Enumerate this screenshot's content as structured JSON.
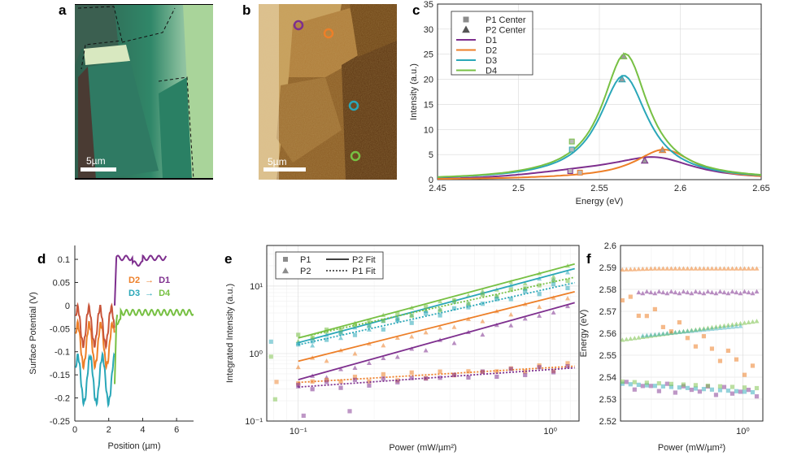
{
  "panels": {
    "a": "a",
    "b": "b",
    "c": "c",
    "d": "d",
    "e": "e",
    "f": "f"
  },
  "scalebar_a": "5µm",
  "scalebar_b": "5µm",
  "colors": {
    "D1": "#7e2f8e",
    "D2": "#ed7f28",
    "D3": "#2aa7b8",
    "D4": "#77c043",
    "red": "#c8553a",
    "marker_gray": "#8c8c8c"
  },
  "chart_data": [
    {
      "id": "c",
      "type": "line",
      "xlabel": "Energy (eV)",
      "ylabel": "Intensity (a.u.)",
      "xlim": [
        2.45,
        2.65
      ],
      "ylim": [
        0,
        35
      ],
      "xticks": [
        "2.45",
        "2.5",
        "2.55",
        "2.6",
        "2.65"
      ],
      "yticks": [
        "0",
        "5",
        "10",
        "15",
        "20",
        "25",
        "30",
        "35"
      ],
      "legend": [
        "P1 Center",
        "P2 Center",
        "D1",
        "D2",
        "D3",
        "D4"
      ],
      "series": [
        {
          "name": "D1",
          "center": 2.585,
          "width": 0.03,
          "amp": 3.8,
          "base": 1.3,
          "p1": [
            2.532,
            1.7
          ],
          "p2": [
            2.578,
            3.8
          ]
        },
        {
          "name": "D2",
          "center": 2.59,
          "width": 0.022,
          "amp": 5.9,
          "base": 0.2,
          "p1": [
            2.538,
            1.4
          ],
          "p2": [
            2.589,
            5.9
          ]
        },
        {
          "name": "D3",
          "center": 2.565,
          "width": 0.018,
          "amp": 20.5,
          "base": 0.3,
          "p1": [
            2.533,
            6.0
          ],
          "p2": [
            2.564,
            20.0
          ]
        },
        {
          "name": "D4",
          "center": 2.566,
          "width": 0.017,
          "amp": 24.6,
          "base": 0.6,
          "p1": [
            2.533,
            7.6
          ],
          "p2": [
            2.565,
            24.6
          ]
        }
      ]
    },
    {
      "id": "d",
      "type": "line",
      "xlabel": "Position  (µm)",
      "ylabel": "Surface Potential (V)",
      "xlim": [
        0,
        7
      ],
      "ylim": [
        -0.25,
        0.13
      ],
      "xticks": [
        "0",
        "2",
        "4",
        "6"
      ],
      "yticks": [
        "0.1",
        "0.05",
        "0",
        "-0.05",
        "-0.1",
        "-0.15",
        "-0.2",
        "-0.25"
      ],
      "legend": [
        {
          "from": "D2",
          "to": "D1"
        },
        {
          "from": "D3",
          "to": "D4"
        }
      ],
      "arrow": "→"
    },
    {
      "id": "e",
      "type": "scatter",
      "xlabel": "Power  (mW/µm²)",
      "ylabel": "Integrated Intensity (a.u.)",
      "xlim_log": [
        0.075,
        1.3
      ],
      "ylim_log": [
        0.1,
        40
      ],
      "xticks": [
        "10⁻¹",
        "10⁰"
      ],
      "yticks": [
        "10⁻¹",
        "10⁰",
        "10¹"
      ],
      "legend": [
        "P1",
        "P2",
        "P2 Fit",
        "P1 Fit"
      ],
      "fits": [
        {
          "series": "D4",
          "kind": "P2",
          "a": 17.0,
          "b": 1.0
        },
        {
          "series": "D3",
          "kind": "P2",
          "a": 14.5,
          "b": 1.0
        },
        {
          "series": "D4",
          "kind": "P1",
          "a": 11.3,
          "b": 0.82
        },
        {
          "series": "D3",
          "kind": "P1",
          "a": 9.3,
          "b": 0.84
        },
        {
          "series": "D2",
          "kind": "P2",
          "a": 6.7,
          "b": 0.94
        },
        {
          "series": "D1",
          "kind": "P2",
          "a": 4.5,
          "b": 1.04
        },
        {
          "series": "D2",
          "kind": "P1",
          "a": 0.62,
          "b": 0.22
        },
        {
          "series": "D1",
          "kind": "P1",
          "a": 0.58,
          "b": 0.26
        }
      ]
    },
    {
      "id": "f",
      "type": "scatter",
      "xlabel": "Power  (mW/µm²)",
      "ylabel": "Energy (eV)",
      "ylim": [
        2.52,
        2.6
      ],
      "yticks": [
        "2.6",
        "2.59",
        "2.58",
        "2.57",
        "2.56",
        "2.55",
        "2.54",
        "2.53",
        "2.52"
      ],
      "xticks": [
        "10⁰"
      ]
    }
  ]
}
